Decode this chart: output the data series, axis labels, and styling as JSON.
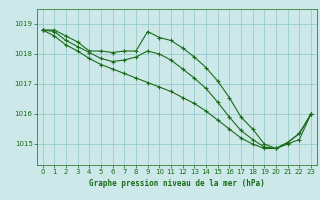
{
  "title": "Graphe pression niveau de la mer (hPa)",
  "bg_color": "#cce8e8",
  "grid_color": "#99cccc",
  "line_color": "#1a6b1a",
  "x_ticks": [
    0,
    1,
    2,
    3,
    4,
    5,
    6,
    7,
    8,
    9,
    10,
    11,
    12,
    13,
    14,
    15,
    16,
    17,
    18,
    19,
    20,
    21,
    22,
    23
  ],
  "y_ticks": [
    1015,
    1016,
    1017,
    1018,
    1019
  ],
  "ylim": [
    1014.3,
    1019.5
  ],
  "xlim": [
    -0.5,
    23.5
  ],
  "series1": [
    1018.8,
    1018.8,
    1018.6,
    1018.4,
    1018.1,
    1018.1,
    1018.05,
    1018.1,
    1018.1,
    1018.75,
    1018.55,
    1018.45,
    1018.2,
    1017.9,
    1017.55,
    1017.1,
    1016.55,
    1015.9,
    1015.5,
    1015.0,
    1014.85,
    1015.0,
    1015.15,
    1016.0
  ],
  "series2": [
    1018.8,
    1018.75,
    1018.45,
    1018.25,
    1018.05,
    1017.85,
    1017.75,
    1017.8,
    1017.9,
    1018.1,
    1018.0,
    1017.8,
    1017.5,
    1017.2,
    1016.85,
    1016.4,
    1015.9,
    1015.45,
    1015.15,
    1014.9,
    1014.85,
    1015.05,
    1015.35,
    1016.0
  ],
  "series3": [
    1018.8,
    1018.6,
    1018.3,
    1018.1,
    1017.85,
    1017.65,
    1017.5,
    1017.35,
    1017.2,
    1017.05,
    1016.9,
    1016.75,
    1016.55,
    1016.35,
    1016.1,
    1015.8,
    1015.5,
    1015.2,
    1015.0,
    1014.85,
    1014.85,
    1015.05,
    1015.35,
    1016.0
  ],
  "ylabel_fontsize": 5.5,
  "xlabel_fontsize": 5.5,
  "tick_fontsize": 5.0,
  "linewidth": 0.8,
  "markersize": 3.0
}
